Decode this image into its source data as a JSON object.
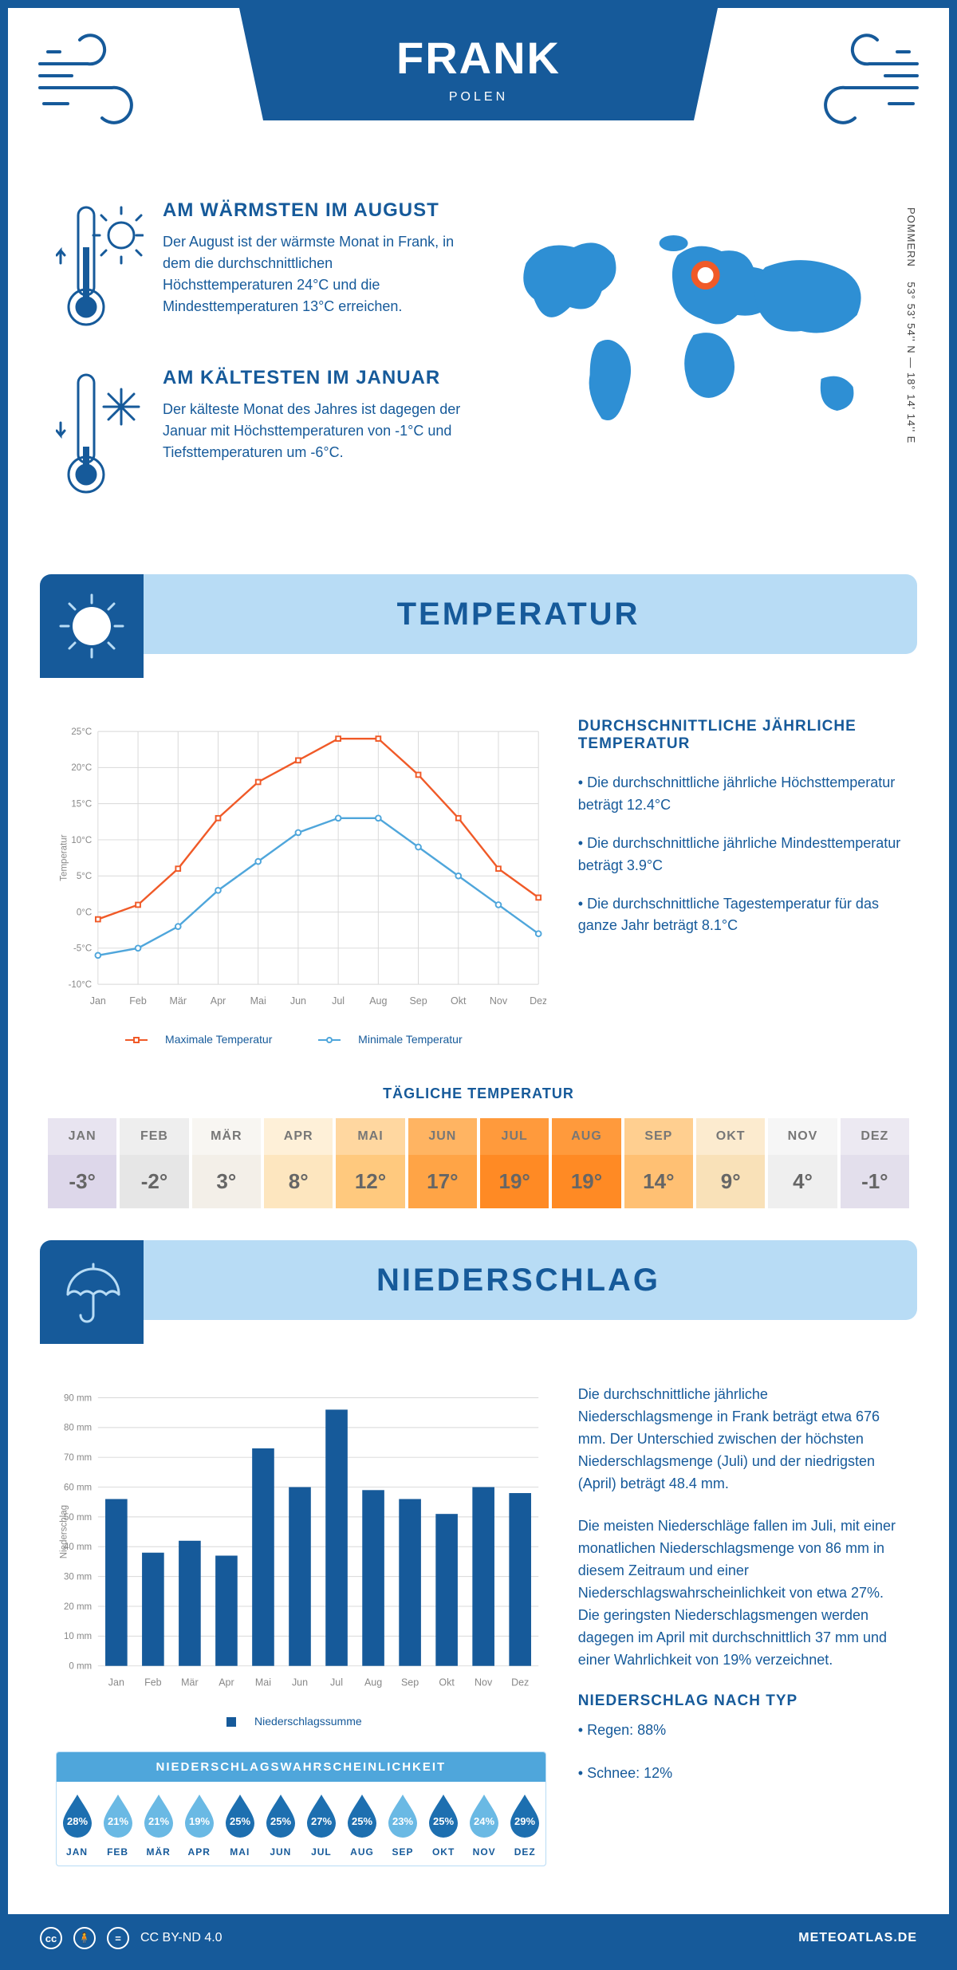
{
  "colors": {
    "primary": "#165a9a",
    "lightblue": "#b8dcf5",
    "midblue": "#4fa6db",
    "orange": "#f05a28",
    "line_blue": "#4fa6db",
    "grid": "#d8d8d8",
    "drop_dark": "#1d6fb0",
    "drop_light": "#6ab9e4",
    "marker": "#f05a28"
  },
  "header": {
    "title": "FRANK",
    "subtitle": "POLEN",
    "coords": "53° 53' 54'' N — 18° 14' 14'' E",
    "region": "POMMERN"
  },
  "warm": {
    "title": "AM WÄRMSTEN IM AUGUST",
    "text": "Der August ist der wärmste Monat in Frank, in dem die durchschnittlichen Höchsttemperaturen 24°C und die Mindesttemperaturen 13°C erreichen."
  },
  "cold": {
    "title": "AM KÄLTESTEN IM JANUAR",
    "text": "Der kälteste Monat des Jahres ist dagegen der Januar mit Höchsttemperaturen von -1°C und Tiefsttemperaturen um -6°C."
  },
  "sections": {
    "temp": "TEMPERATUR",
    "precip": "NIEDERSCHLAG"
  },
  "temp_chart": {
    "type": "line",
    "months": [
      "Jan",
      "Feb",
      "Mär",
      "Apr",
      "Mai",
      "Jun",
      "Jul",
      "Aug",
      "Sep",
      "Okt",
      "Nov",
      "Dez"
    ],
    "max": [
      -1,
      1,
      6,
      13,
      18,
      21,
      24,
      24,
      19,
      13,
      6,
      2
    ],
    "min": [
      -6,
      -5,
      -2,
      3,
      7,
      11,
      13,
      13,
      9,
      5,
      1,
      -3
    ],
    "ylim": [
      -10,
      25
    ],
    "ytick_step": 5,
    "ylabel": "Temperatur",
    "max_color": "#f05a28",
    "min_color": "#4fa6db",
    "legend_max": "Maximale Temperatur",
    "legend_min": "Minimale Temperatur",
    "grid_color": "#d8d8d8"
  },
  "temp_info": {
    "title": "DURCHSCHNITTLICHE JÄHRLICHE TEMPERATUR",
    "b1": "• Die durchschnittliche jährliche Höchsttemperatur beträgt 12.4°C",
    "b2": "• Die durchschnittliche jährliche Mindesttemperatur beträgt 3.9°C",
    "b3": "• Die durchschnittliche Tagestemperatur für das ganze Jahr beträgt 8.1°C"
  },
  "daily": {
    "title": "TÄGLICHE TEMPERATUR",
    "months": [
      "JAN",
      "FEB",
      "MÄR",
      "APR",
      "MAI",
      "JUN",
      "JUL",
      "AUG",
      "SEP",
      "OKT",
      "NOV",
      "DEZ"
    ],
    "values": [
      "-3°",
      "-2°",
      "3°",
      "8°",
      "12°",
      "17°",
      "19°",
      "19°",
      "14°",
      "9°",
      "4°",
      "-1°"
    ],
    "head_colors": [
      "#e8e4f0",
      "#eeeeee",
      "#f8f6f2",
      "#fef0d8",
      "#ffd7a0",
      "#ffb462",
      "#ff9a3c",
      "#ff9a3c",
      "#ffcf90",
      "#fcebcf",
      "#f6f6f6",
      "#ece9f2"
    ],
    "val_colors": [
      "#ddd7ea",
      "#e6e6e6",
      "#f3efe8",
      "#fde6bf",
      "#ffc97e",
      "#ffa446",
      "#ff8a24",
      "#ff8a24",
      "#ffc073",
      "#f9e1b8",
      "#efefef",
      "#e3dfec"
    ]
  },
  "precip_chart": {
    "type": "bar",
    "months": [
      "Jan",
      "Feb",
      "Mär",
      "Apr",
      "Mai",
      "Jun",
      "Jul",
      "Aug",
      "Sep",
      "Okt",
      "Nov",
      "Dez"
    ],
    "values": [
      56,
      38,
      42,
      37,
      73,
      60,
      86,
      59,
      56,
      51,
      60,
      58
    ],
    "ylim": [
      0,
      90
    ],
    "ytick_step": 10,
    "ylabel": "Niederschlag",
    "bar_color": "#165a9a",
    "legend": "Niederschlagssumme",
    "grid_color": "#d8d8d8"
  },
  "precip_text": {
    "p1": "Die durchschnittliche jährliche Niederschlagsmenge in Frank beträgt etwa 676 mm. Der Unterschied zwischen der höchsten Niederschlagsmenge (Juli) und der niedrigsten (April) beträgt 48.4 mm.",
    "p2": "Die meisten Niederschläge fallen im Juli, mit einer monatlichen Niederschlagsmenge von 86 mm in diesem Zeitraum und einer Niederschlagswahrscheinlichkeit von etwa 27%. Die geringsten Niederschlagsmengen werden dagegen im April mit durchschnittlich 37 mm und einer Wahrlichkeit von 19% verzeichnet.",
    "type_title": "NIEDERSCHLAG NACH TYP",
    "rain": "• Regen: 88%",
    "snow": "• Schnee: 12%"
  },
  "prob": {
    "title": "NIEDERSCHLAGSWAHRSCHEINLICHKEIT",
    "months": [
      "JAN",
      "FEB",
      "MÄR",
      "APR",
      "MAI",
      "JUN",
      "JUL",
      "AUG",
      "SEP",
      "OKT",
      "NOV",
      "DEZ"
    ],
    "values": [
      "28%",
      "21%",
      "21%",
      "19%",
      "25%",
      "25%",
      "27%",
      "25%",
      "23%",
      "25%",
      "24%",
      "29%"
    ],
    "dark": [
      true,
      false,
      false,
      false,
      true,
      true,
      true,
      true,
      false,
      true,
      false,
      true
    ]
  },
  "footer": {
    "license": "CC BY-ND 4.0",
    "site": "METEOATLAS.DE"
  }
}
